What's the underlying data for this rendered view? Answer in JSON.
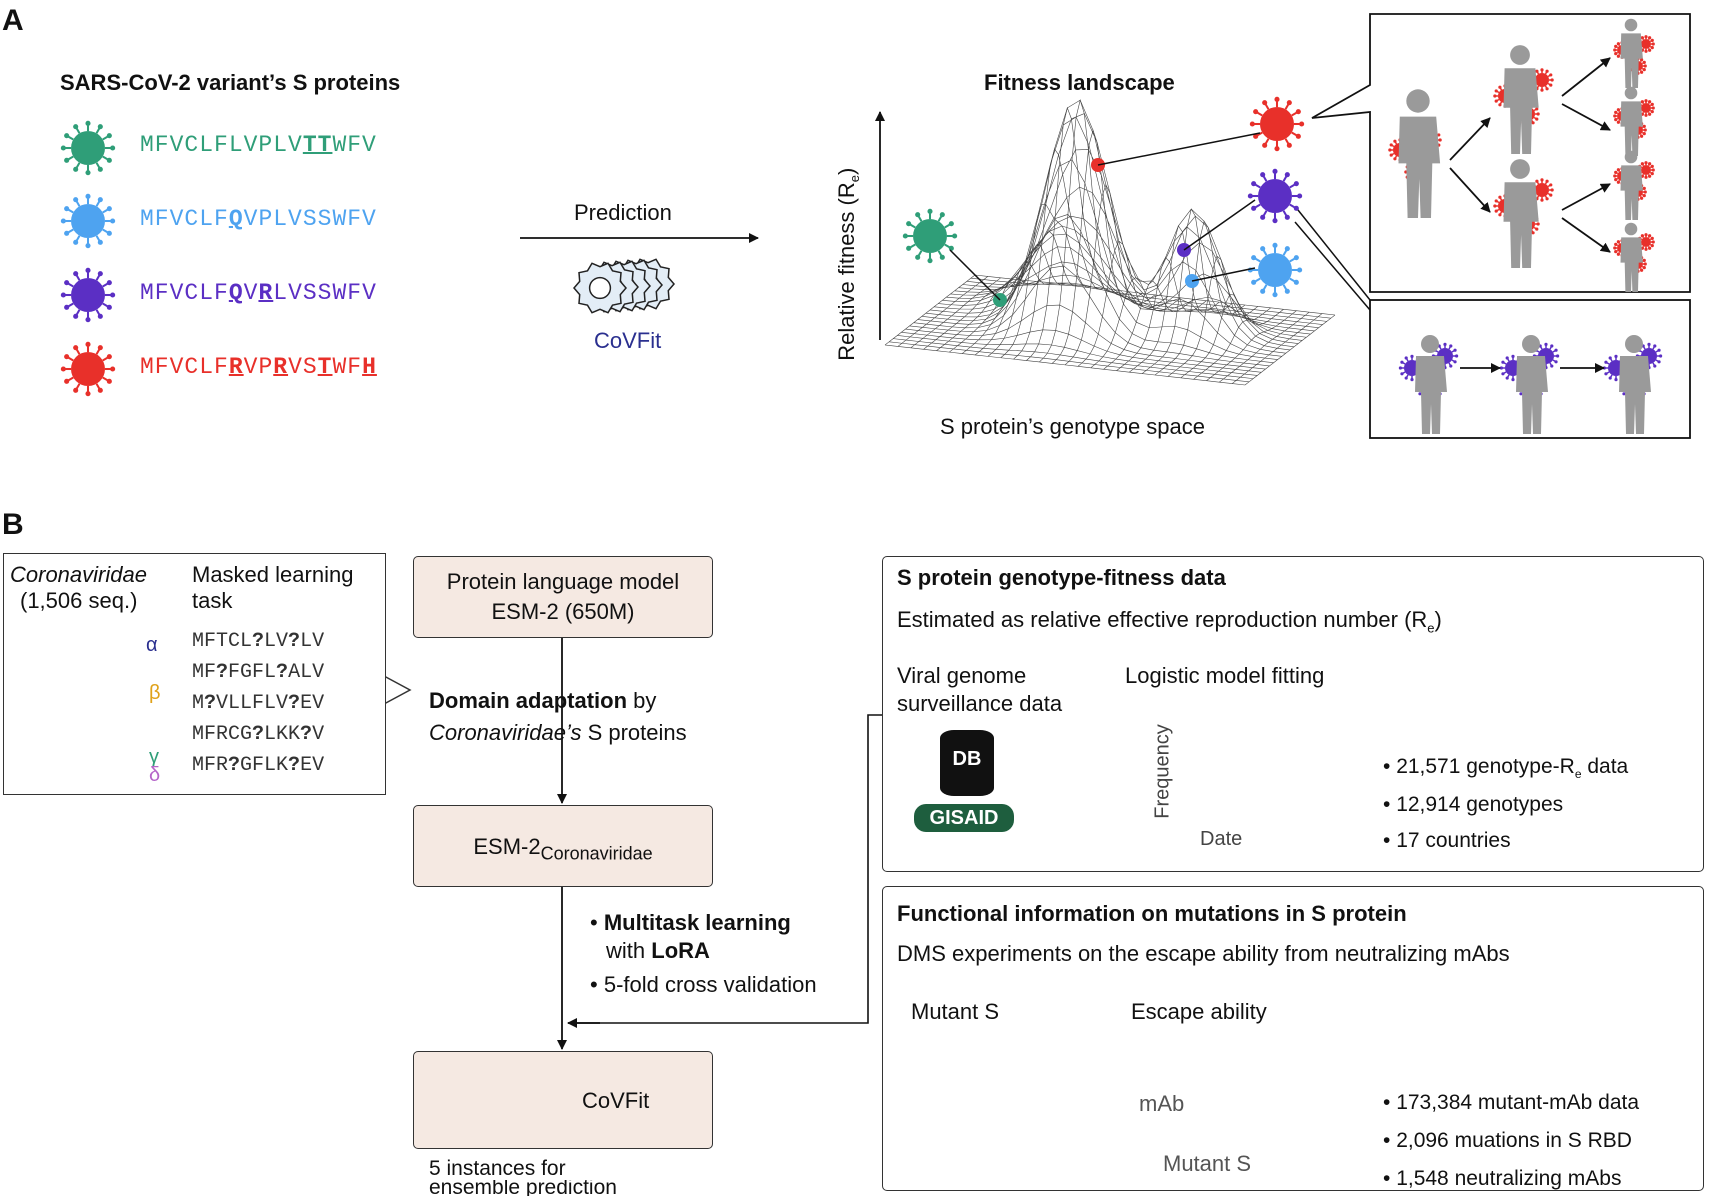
{
  "panelA": {
    "letter": "A",
    "variants_title": "SARS-CoV-2 variant’s S proteins",
    "sequences": [
      {
        "color": "#2f9e78",
        "segments": [
          {
            "t": "MFVCLFLVPLV",
            "em": false
          },
          {
            "t": "TT",
            "em": true
          },
          {
            "t": "WFV",
            "em": false
          }
        ]
      },
      {
        "color": "#4ea3f0",
        "segments": [
          {
            "t": "MFVCLF",
            "em": false
          },
          {
            "t": "Q",
            "em": true
          },
          {
            "t": "VPLVSSWFV",
            "em": false
          }
        ]
      },
      {
        "color": "#5b2fc4",
        "segments": [
          {
            "t": "MFVCLF",
            "em": false
          },
          {
            "t": "Q",
            "em": true
          },
          {
            "t": "V",
            "em": false
          },
          {
            "t": "R",
            "em": true
          },
          {
            "t": "LVSSWFV",
            "em": false
          }
        ]
      },
      {
        "color": "#e8302a",
        "segments": [
          {
            "t": "MFVCLF",
            "em": false
          },
          {
            "t": "R",
            "em": true
          },
          {
            "t": "VP",
            "em": false
          },
          {
            "t": "R",
            "em": true
          },
          {
            "t": "VS",
            "em": false
          },
          {
            "t": "T",
            "em": true
          },
          {
            "t": "WF",
            "em": false
          },
          {
            "t": "H",
            "em": true
          }
        ]
      }
    ],
    "prediction_label": "Prediction",
    "covfit_label": "CoVFit",
    "fitness_title": "Fitness landscape",
    "y_axis_label": "Relative fitness (R",
    "y_axis_sub": "e",
    "x_axis_label": "S protein’s genotype space"
  },
  "panelB": {
    "letter": "B",
    "tree": {
      "family": "Coronaviridae",
      "count": "(1,506 seq.)",
      "task_line1": "Masked learning",
      "task_line2": "task",
      "genera": [
        "α",
        "β",
        "γ",
        "δ"
      ],
      "masked_seqs": [
        "MFTCL?LV?LV",
        "MF?FGFL?ALV",
        "M?VLLFLV?EV",
        "MFRCG?LKK?V",
        "MFR?GFLK?EV"
      ]
    },
    "plm_line1": "Protein language model",
    "plm_line2": "ESM-2 (650M)",
    "domain_bold": "Domain adaptation",
    "domain_rest": " by",
    "domain_line2_italic": "Coronaviridae’s",
    "domain_line2_rest": " S proteins",
    "esm_cov_main": "ESM-2",
    "esm_cov_sub": "Coronaviridae",
    "multitask_bold": "Multitask learning",
    "with_text": "with ",
    "lora": "LoRA",
    "cv": "5-fold cross validation",
    "covfit": "CoVFit",
    "instances_line1": "5 instances for",
    "instances_line2": "ensemble prediction",
    "geno_box": {
      "title": "S protein genotype-fitness data",
      "subtitle": "Estimated as relative effective reproduction number (R",
      "subtitle_sub": "e",
      "subtitle_end": ")",
      "viral_line1": "Viral genome",
      "viral_line2": "surveillance data",
      "db": "DB",
      "gisaid": "GISAID",
      "logistic": "Logistic model fitting",
      "freq": "Frequency",
      "date": "Date",
      "bullet1a": "21,571 genotype-R",
      "bullet1sub": "e",
      "bullet1b": " data",
      "bullet2": "12,914 genotypes",
      "bullet3": "17 countries"
    },
    "func_box": {
      "title": "Functional information on mutations in S protein",
      "subtitle": "DMS experiments on the escape ability from neutralizing mAbs",
      "mutant_s": "Mutant S",
      "escape": "Escape ability",
      "mab": "mAb",
      "mutant_s2": "Mutant S",
      "bullet1": "173,384 mutant-mAb data",
      "bullet2": "2,096 muations in S RBD",
      "bullet3": "1,548 neutralizing mAbs"
    }
  },
  "colors": {
    "green": "#2f9e78",
    "blue": "#4ea3f0",
    "purple": "#5b2fc4",
    "red": "#e8302a",
    "navy": "#2a2f8f",
    "pink_box": "#f5e9e2",
    "gray_person": "#9a9a9a"
  }
}
